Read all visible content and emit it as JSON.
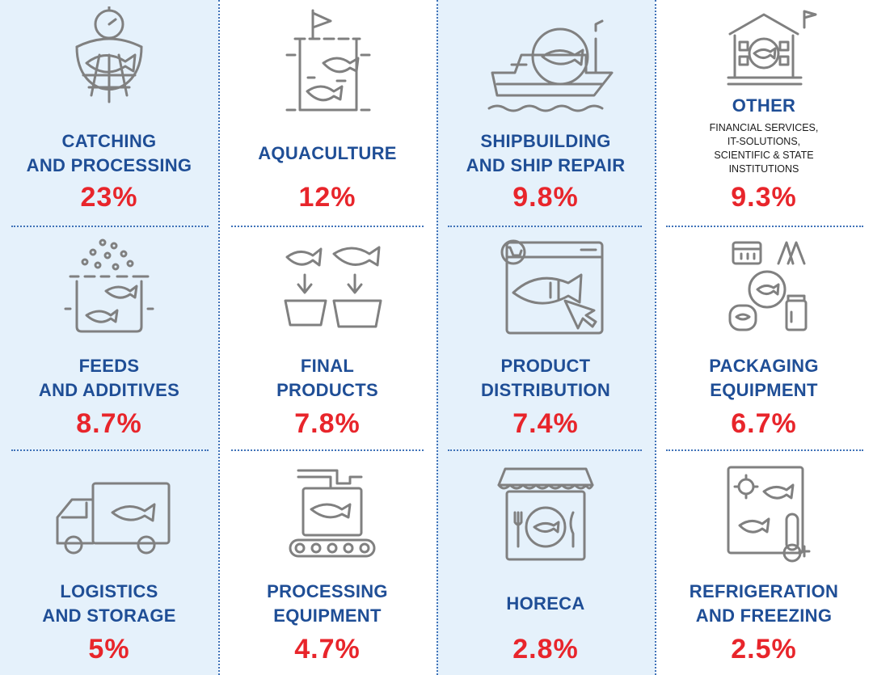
{
  "colors": {
    "label": "#1f4e96",
    "percent": "#e8252b",
    "icon": "#808080",
    "band": "#e5f1fb",
    "divider": "#3f72b8"
  },
  "cells": [
    {
      "icon": "fish-net-icon",
      "label1": "CATCHING",
      "label2": "AND PROCESSING",
      "percent": "23%"
    },
    {
      "icon": "aquaculture-pond-icon",
      "label1": "AQUACULTURE",
      "percent": "12%"
    },
    {
      "icon": "ship-icon",
      "label1": "SHIPBUILDING",
      "label2": "AND SHIP REPAIR",
      "percent": "9.8%"
    },
    {
      "icon": "institution-building-icon",
      "label1": "OTHER",
      "sub1": "FINANCIAL SERVICES,",
      "sub2": "IT-SOLUTIONS,",
      "sub3": "SCIENTIFIC & STATE",
      "sub4": "INSTITUTIONS",
      "percent": "9.3%"
    },
    {
      "icon": "fish-feed-icon",
      "label1": "FEEDS",
      "label2": "AND ADDITIVES",
      "percent": "8.7%"
    },
    {
      "icon": "final-products-icon",
      "label1": "FINAL",
      "label2": "PRODUCTS",
      "percent": "7.8%"
    },
    {
      "icon": "online-shop-icon",
      "label1": "PRODUCT",
      "label2": "DISTRIBUTION",
      "percent": "7.4%"
    },
    {
      "icon": "packaging-icon",
      "label1": "PACKAGING",
      "label2": "EQUIPMENT",
      "percent": "6.7%"
    },
    {
      "icon": "delivery-truck-icon",
      "label1": "LOGISTICS",
      "label2": "AND STORAGE",
      "percent": "5%"
    },
    {
      "icon": "conveyor-machine-icon",
      "label1": "PROCESSING",
      "label2": "EQUIPMENT",
      "percent": "4.7%"
    },
    {
      "icon": "restaurant-icon",
      "label1": "HORECA",
      "percent": "2.8%"
    },
    {
      "icon": "refrigerator-icon",
      "label1": "REFRIGERATION",
      "label2": "AND FREEZING",
      "percent": "2.5%"
    }
  ]
}
